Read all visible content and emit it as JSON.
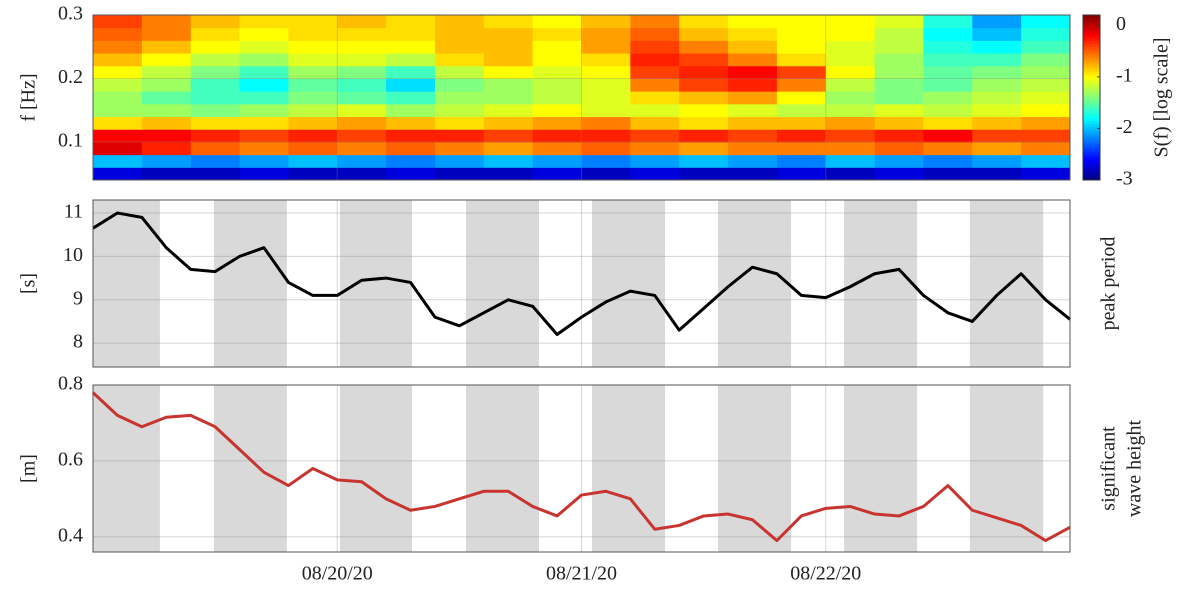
{
  "x_axis": {
    "xlim": [
      0,
      4
    ],
    "xticks": [
      {
        "value": 1,
        "label": "08/20/20"
      },
      {
        "value": 2,
        "label": "08/21/20"
      },
      {
        "value": 3,
        "label": "08/22/20"
      }
    ],
    "grid": true
  },
  "chart_data": [
    {
      "type": "heatmap",
      "ylabel": "f [Hz]",
      "ylim": [
        0.04,
        0.3
      ],
      "yticks": [
        0.1,
        0.2,
        0.3
      ],
      "grid": true,
      "colormap": "jet",
      "clim": [
        -3,
        0.2
      ],
      "colorbar_ticks": [
        0,
        -1,
        -2,
        -3
      ],
      "colorbar_label": "S(f) [log scale]",
      "x": [
        0.1,
        0.3,
        0.5,
        0.7,
        0.9,
        1.1,
        1.3,
        1.5,
        1.7,
        1.9,
        2.1,
        2.3,
        2.5,
        2.7,
        2.9,
        3.1,
        3.3,
        3.5,
        3.7,
        3.9
      ],
      "y": [
        0.05,
        0.07,
        0.09,
        0.11,
        0.13,
        0.15,
        0.17,
        0.19,
        0.21,
        0.23,
        0.25,
        0.27,
        0.29
      ],
      "z": [
        [
          -2.7,
          -2.8,
          -2.8,
          -2.7,
          -2.8,
          -2.8,
          -2.7,
          -2.8,
          -2.8,
          -2.7,
          -2.8,
          -2.7,
          -2.8,
          -2.8,
          -2.7,
          -2.8,
          -2.7,
          -2.8,
          -2.8,
          -2.7
        ],
        [
          -2.0,
          -2.1,
          -2.2,
          -2.1,
          -2.0,
          -2.1,
          -2.2,
          -2.1,
          -2.0,
          -2.1,
          -2.2,
          -2.1,
          -2.0,
          -2.1,
          -2.2,
          -2.0,
          -2.1,
          -2.2,
          -2.1,
          -2.0
        ],
        [
          -0.1,
          -0.3,
          -0.5,
          -0.6,
          -0.5,
          -0.6,
          -0.5,
          -0.6,
          -0.7,
          -0.6,
          -0.5,
          -0.6,
          -0.7,
          -0.6,
          -0.6,
          -0.6,
          -0.5,
          -0.6,
          -0.7,
          -0.6
        ],
        [
          -0.2,
          -0.2,
          -0.3,
          -0.4,
          -0.3,
          -0.4,
          -0.3,
          -0.3,
          -0.4,
          -0.3,
          -0.3,
          -0.4,
          -0.3,
          -0.4,
          -0.3,
          -0.4,
          -0.3,
          -0.2,
          -0.4,
          -0.4
        ],
        [
          -0.9,
          -0.8,
          -0.9,
          -0.9,
          -0.8,
          -0.7,
          -0.8,
          -0.9,
          -0.8,
          -0.7,
          -0.6,
          -0.8,
          -0.9,
          -0.8,
          -0.8,
          -0.7,
          -0.8,
          -0.9,
          -0.8,
          -0.7
        ],
        [
          -1.3,
          -1.3,
          -1.4,
          -1.3,
          -1.2,
          -1.1,
          -1.3,
          -1.2,
          -1.1,
          -1.0,
          -1.1,
          -1.1,
          -1.0,
          -1.1,
          -1.2,
          -1.2,
          -1.1,
          -1.2,
          -1.1,
          -1.0
        ],
        [
          -1.3,
          -1.5,
          -1.6,
          -1.6,
          -1.4,
          -1.5,
          -1.6,
          -1.3,
          -1.3,
          -1.2,
          -1.1,
          -0.9,
          -0.8,
          -0.7,
          -1.0,
          -1.3,
          -1.4,
          -1.3,
          -1.2,
          -1.1
        ],
        [
          -1.2,
          -1.3,
          -1.6,
          -1.8,
          -1.5,
          -1.6,
          -1.9,
          -1.4,
          -1.3,
          -1.2,
          -1.1,
          -0.6,
          -0.4,
          -0.3,
          -0.6,
          -1.2,
          -1.4,
          -1.5,
          -1.3,
          -1.2
        ],
        [
          -1.0,
          -1.2,
          -1.4,
          -1.6,
          -1.3,
          -1.4,
          -1.6,
          -1.2,
          -1.0,
          -1.1,
          -1.0,
          -0.4,
          -0.3,
          -0.2,
          -0.4,
          -1.0,
          -1.3,
          -1.5,
          -1.4,
          -1.3
        ],
        [
          -0.8,
          -1.0,
          -1.2,
          -1.3,
          -1.1,
          -1.1,
          -1.2,
          -0.9,
          -0.8,
          -1.0,
          -0.9,
          -0.3,
          -0.4,
          -0.6,
          -0.9,
          -1.1,
          -1.3,
          -1.6,
          -1.6,
          -1.4
        ],
        [
          -0.6,
          -0.8,
          -1.0,
          -1.1,
          -1.0,
          -1.0,
          -1.0,
          -0.8,
          -0.8,
          -1.0,
          -0.7,
          -0.4,
          -0.6,
          -0.8,
          -1.0,
          -1.1,
          -1.2,
          -1.7,
          -1.8,
          -1.6
        ],
        [
          -0.5,
          -0.6,
          -0.9,
          -1.0,
          -0.9,
          -0.9,
          -0.9,
          -0.8,
          -0.8,
          -0.9,
          -0.7,
          -0.5,
          -0.8,
          -0.9,
          -1.0,
          -1.0,
          -1.2,
          -1.8,
          -2.0,
          -1.7
        ],
        [
          -0.4,
          -0.6,
          -0.8,
          -0.9,
          -0.9,
          -0.8,
          -0.9,
          -0.8,
          -0.9,
          -1.0,
          -0.8,
          -0.6,
          -0.9,
          -1.0,
          -1.0,
          -1.0,
          -1.1,
          -1.7,
          -2.1,
          -1.8
        ]
      ]
    },
    {
      "type": "line",
      "ylabel": "[s]",
      "right_label": [
        "peak period"
      ],
      "color": "#000000",
      "ylim": [
        7.45,
        11.3
      ],
      "yticks": [
        8,
        9,
        10,
        11
      ],
      "grid": true,
      "shaded": [
        [
          0,
          0.274
        ],
        [
          0.495,
          0.794
        ],
        [
          1.011,
          1.306
        ],
        [
          1.527,
          1.826
        ],
        [
          2.043,
          2.342
        ],
        [
          2.559,
          2.858
        ],
        [
          3.075,
          3.374
        ],
        [
          3.59,
          3.89
        ]
      ],
      "x": [
        0,
        0.1,
        0.2,
        0.3,
        0.4,
        0.5,
        0.6,
        0.7,
        0.8,
        0.9,
        1.0,
        1.1,
        1.2,
        1.3,
        1.4,
        1.5,
        1.6,
        1.7,
        1.8,
        1.9,
        2.0,
        2.1,
        2.2,
        2.3,
        2.4,
        2.5,
        2.6,
        2.7,
        2.8,
        2.9,
        3.0,
        3.1,
        3.2,
        3.3,
        3.4,
        3.5,
        3.6,
        3.7,
        3.8,
        3.9,
        4.0
      ],
      "values": [
        10.65,
        11.0,
        10.9,
        10.2,
        9.7,
        9.65,
        10.0,
        10.2,
        9.4,
        9.1,
        9.1,
        9.45,
        9.5,
        9.4,
        8.6,
        8.4,
        8.7,
        9.0,
        8.85,
        8.2,
        8.6,
        8.95,
        9.2,
        9.1,
        8.3,
        8.8,
        9.3,
        9.75,
        9.6,
        9.1,
        9.05,
        9.3,
        9.6,
        9.7,
        9.1,
        8.7,
        8.5,
        9.1,
        9.6,
        9.0,
        8.55
      ]
    },
    {
      "type": "line",
      "ylabel": "[m]",
      "right_label": [
        "significant",
        "wave height"
      ],
      "color": "#c8342f",
      "ylim": [
        0.36,
        0.8
      ],
      "yticks": [
        0.4,
        0.6,
        0.8
      ],
      "grid": true,
      "shaded": [
        [
          0,
          0.274
        ],
        [
          0.495,
          0.794
        ],
        [
          1.011,
          1.306
        ],
        [
          1.527,
          1.826
        ],
        [
          2.043,
          2.342
        ],
        [
          2.559,
          2.858
        ],
        [
          3.075,
          3.374
        ],
        [
          3.59,
          3.89
        ]
      ],
      "x": [
        0,
        0.1,
        0.2,
        0.3,
        0.4,
        0.5,
        0.6,
        0.7,
        0.8,
        0.9,
        1.0,
        1.1,
        1.2,
        1.3,
        1.4,
        1.5,
        1.6,
        1.7,
        1.8,
        1.9,
        2.0,
        2.1,
        2.2,
        2.3,
        2.4,
        2.5,
        2.6,
        2.7,
        2.8,
        2.9,
        3.0,
        3.1,
        3.2,
        3.3,
        3.4,
        3.5,
        3.6,
        3.7,
        3.8,
        3.9,
        4.0
      ],
      "values": [
        0.78,
        0.72,
        0.69,
        0.715,
        0.72,
        0.69,
        0.63,
        0.57,
        0.535,
        0.58,
        0.55,
        0.545,
        0.5,
        0.47,
        0.48,
        0.5,
        0.52,
        0.52,
        0.48,
        0.455,
        0.51,
        0.52,
        0.5,
        0.42,
        0.43,
        0.455,
        0.46,
        0.445,
        0.39,
        0.455,
        0.475,
        0.48,
        0.46,
        0.455,
        0.48,
        0.535,
        0.47,
        0.45,
        0.43,
        0.39,
        0.425
      ]
    }
  ]
}
